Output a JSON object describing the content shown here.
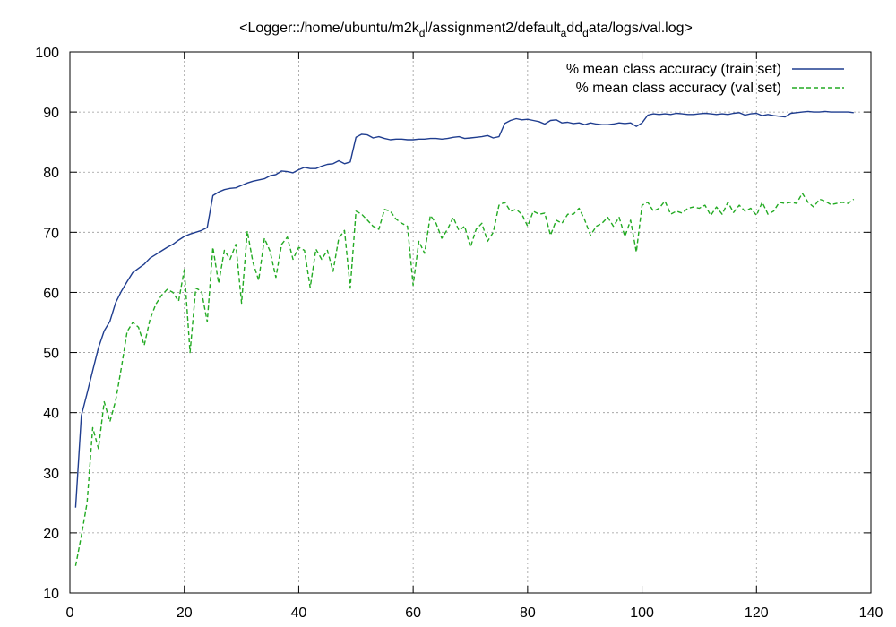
{
  "chart_data": {
    "type": "line",
    "title": "<Logger::/home/ubuntu/m2k_d l/assignment2/default_a dd_d ata/logs/val.log>",
    "title_parts": [
      {
        "text": "<Logger::/home/ubuntu/m2k",
        "sub": false
      },
      {
        "text": "d",
        "sub": true
      },
      {
        "text": "l/assignment2/default",
        "sub": false
      },
      {
        "text": "a",
        "sub": true
      },
      {
        "text": "dd",
        "sub": false
      },
      {
        "text": "d",
        "sub": true
      },
      {
        "text": "ata/logs/val.log>",
        "sub": false
      }
    ],
    "xlabel": "",
    "ylabel": "",
    "xlim": [
      0,
      140
    ],
    "ylim": [
      10,
      100
    ],
    "x_ticks": [
      0,
      20,
      40,
      60,
      80,
      100,
      120,
      140
    ],
    "y_ticks": [
      10,
      20,
      30,
      40,
      50,
      60,
      70,
      80,
      90,
      100
    ],
    "grid": true,
    "legend_position": "top-right",
    "series": [
      {
        "name": "% mean class accuracy (train set)",
        "color": "#1f3d8f",
        "dash": "solid",
        "x": [
          1,
          2,
          3,
          4,
          5,
          6,
          7,
          8,
          9,
          10,
          11,
          12,
          13,
          14,
          15,
          16,
          17,
          18,
          19,
          20,
          21,
          22,
          23,
          24,
          25,
          26,
          27,
          28,
          29,
          30,
          31,
          32,
          33,
          34,
          35,
          36,
          37,
          38,
          39,
          40,
          41,
          42,
          43,
          44,
          45,
          46,
          47,
          48,
          49,
          50,
          51,
          52,
          53,
          54,
          55,
          56,
          57,
          58,
          59,
          60,
          61,
          62,
          63,
          64,
          65,
          66,
          67,
          68,
          69,
          70,
          71,
          72,
          73,
          74,
          75,
          76,
          77,
          78,
          79,
          80,
          81,
          82,
          83,
          84,
          85,
          86,
          87,
          88,
          89,
          90,
          91,
          92,
          93,
          94,
          95,
          96,
          97,
          98,
          99,
          100,
          101,
          102,
          103,
          104,
          105,
          106,
          107,
          108,
          109,
          110,
          111,
          112,
          113,
          114,
          115,
          116,
          117,
          118,
          119,
          120,
          121,
          122,
          123,
          124,
          125,
          126,
          127,
          128,
          129,
          130,
          131,
          132,
          133,
          134,
          135,
          136,
          137
        ],
        "values": [
          24.2,
          39.5,
          43.2,
          47.0,
          50.8,
          53.6,
          55.2,
          58.3,
          60.2,
          61.8,
          63.3,
          64.0,
          64.7,
          65.7,
          66.3,
          66.9,
          67.5,
          68.0,
          68.7,
          69.3,
          69.7,
          70.0,
          70.3,
          70.8,
          76.1,
          76.7,
          77.1,
          77.3,
          77.4,
          77.8,
          78.2,
          78.5,
          78.7,
          78.9,
          79.4,
          79.6,
          80.2,
          80.1,
          79.9,
          80.4,
          80.8,
          80.6,
          80.6,
          81.0,
          81.3,
          81.4,
          81.9,
          81.4,
          81.7,
          85.8,
          86.3,
          86.2,
          85.7,
          85.9,
          85.6,
          85.4,
          85.5,
          85.5,
          85.4,
          85.4,
          85.5,
          85.5,
          85.6,
          85.6,
          85.5,
          85.6,
          85.8,
          85.9,
          85.6,
          85.7,
          85.8,
          85.9,
          86.1,
          85.7,
          85.9,
          88.1,
          88.6,
          88.9,
          88.7,
          88.8,
          88.6,
          88.4,
          88.0,
          88.6,
          88.7,
          88.2,
          88.3,
          88.1,
          88.2,
          87.9,
          88.2,
          88.0,
          87.9,
          87.9,
          88.0,
          88.2,
          88.1,
          88.2,
          87.6,
          88.2,
          89.5,
          89.7,
          89.6,
          89.7,
          89.6,
          89.8,
          89.7,
          89.6,
          89.6,
          89.7,
          89.8,
          89.7,
          89.6,
          89.7,
          89.6,
          89.8,
          89.9,
          89.5,
          89.7,
          89.8,
          89.4,
          89.6,
          89.4,
          89.3,
          89.2,
          89.8,
          89.9,
          90.0,
          90.1,
          90.0,
          90.0,
          90.1,
          90.0,
          90.0,
          90.0,
          90.0,
          89.9
        ]
      },
      {
        "name": "% mean class accuracy (val set)",
        "color": "#22aa22",
        "dash": "dashed",
        "x": [
          1,
          2,
          3,
          4,
          5,
          6,
          7,
          8,
          9,
          10,
          11,
          12,
          13,
          14,
          15,
          16,
          17,
          18,
          19,
          20,
          21,
          22,
          23,
          24,
          25,
          26,
          27,
          28,
          29,
          30,
          31,
          32,
          33,
          34,
          35,
          36,
          37,
          38,
          39,
          40,
          41,
          42,
          43,
          44,
          45,
          46,
          47,
          48,
          49,
          50,
          51,
          52,
          53,
          54,
          55,
          56,
          57,
          58,
          59,
          60,
          61,
          62,
          63,
          64,
          65,
          66,
          67,
          68,
          69,
          70,
          71,
          72,
          73,
          74,
          75,
          76,
          77,
          78,
          79,
          80,
          81,
          82,
          83,
          84,
          85,
          86,
          87,
          88,
          89,
          90,
          91,
          92,
          93,
          94,
          95,
          96,
          97,
          98,
          99,
          100,
          101,
          102,
          103,
          104,
          105,
          106,
          107,
          108,
          109,
          110,
          111,
          112,
          113,
          114,
          115,
          116,
          117,
          118,
          119,
          120,
          121,
          122,
          123,
          124,
          125,
          126,
          127,
          128,
          129,
          130,
          131,
          132,
          133,
          134,
          135,
          136,
          137
        ],
        "values": [
          14.5,
          19.5,
          25.0,
          37.5,
          34.0,
          41.8,
          38.5,
          42.0,
          47.5,
          53.5,
          55.0,
          54.2,
          51.2,
          55.5,
          58.0,
          59.5,
          60.5,
          60.0,
          58.5,
          63.8,
          50.0,
          60.7,
          60.2,
          55.1,
          67.5,
          61.5,
          67.0,
          65.5,
          68.0,
          58.2,
          70.2,
          65.0,
          62.0,
          69.0,
          66.8,
          62.5,
          68.0,
          69.2,
          65.5,
          67.5,
          67.0,
          60.8,
          67.2,
          65.5,
          67.0,
          63.5,
          69.0,
          70.3,
          60.7,
          73.5,
          73.0,
          72.0,
          71.0,
          70.5,
          73.8,
          73.5,
          72.2,
          71.5,
          71.0,
          61.2,
          68.5,
          66.5,
          72.8,
          71.5,
          69.0,
          70.5,
          72.5,
          70.3,
          71.0,
          67.5,
          70.5,
          71.5,
          68.5,
          70.0,
          74.5,
          75.0,
          73.5,
          73.8,
          73.0,
          71.0,
          73.5,
          73.0,
          73.2,
          69.5,
          72.0,
          71.5,
          73.0,
          73.0,
          74.0,
          72.0,
          69.5,
          71.0,
          71.5,
          72.5,
          71.0,
          72.5,
          69.3,
          72.0,
          66.7,
          74.5,
          75.0,
          73.5,
          74.0,
          75.2,
          73.0,
          73.5,
          73.2,
          74.0,
          74.2,
          74.0,
          74.5,
          72.8,
          74.2,
          73.0,
          75.0,
          73.3,
          74.5,
          73.5,
          74.0,
          72.8,
          75.0,
          73.0,
          73.5,
          75.0,
          74.8,
          75.0,
          74.8,
          76.5,
          75.0,
          74.2,
          75.5,
          75.2,
          74.6,
          74.8,
          75.0,
          74.8,
          75.5
        ]
      }
    ]
  }
}
